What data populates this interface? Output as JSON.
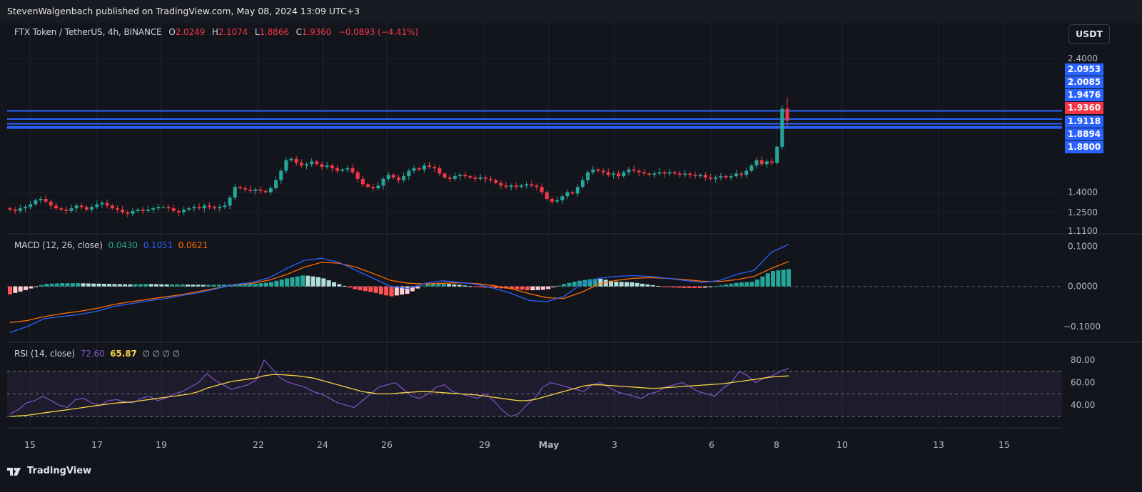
{
  "header": {
    "publisher": "StevenWalgenbach published on TradingView.com, May 08, 2024 13:09 UTC+3"
  },
  "symbol_legend": {
    "name": "FTX Token / TetherUS, 4h, BINANCE",
    "open_label": "O",
    "open": "2.0249",
    "high_label": "H",
    "high": "2.1074",
    "low_label": "L",
    "low": "1.8866",
    "close_label": "C",
    "close": "1.9360",
    "change": "−0.0893 (−4.41%)"
  },
  "currency_button": "USDT",
  "macd_legend": {
    "name": "MACD (12, 26, close)",
    "histogram": "0.0430",
    "macd": "0.1051",
    "signal": "0.0621"
  },
  "rsi_legend": {
    "name": "RSI (14, close)",
    "rsi": "72.60",
    "ma": "65.87",
    "extras": "∅  ∅  ∅  ∅"
  },
  "price_axis": {
    "ticks": [
      "2.4000",
      "1.4000",
      "1.2500",
      "1.1100"
    ],
    "tagged_levels": [
      {
        "label": "2.0953",
        "color": "#2962ff"
      },
      {
        "label": "2.0085",
        "color": "#2962ff"
      },
      {
        "label": "1.9476",
        "color": "#2962ff"
      },
      {
        "label": "1.9360",
        "color": "#f23645"
      },
      {
        "label": "1.9118",
        "color": "#2962ff"
      },
      {
        "label": "1.8894",
        "color": "#2962ff"
      },
      {
        "label": "1.8800",
        "color": "#2962ff"
      }
    ]
  },
  "macd_axis": {
    "ticks": [
      "0.1000",
      "0.0000",
      "−0.1000"
    ]
  },
  "rsi_axis": {
    "ticks": [
      "80.00",
      "60.00",
      "40.00"
    ]
  },
  "time_axis": {
    "labels": [
      "15",
      "17",
      "19",
      "22",
      "24",
      "26",
      "29",
      "May",
      "3",
      "6",
      "8",
      "10",
      "13",
      "15"
    ]
  },
  "colors": {
    "up": "#26a69a",
    "down": "#f23645",
    "level_line": "#2962ff",
    "macd_line": "#2962ff",
    "signal_line": "#ff6d00",
    "rsi_line": "#7e57c2",
    "rsi_ma": "#f5d142",
    "background": "#13151c"
  },
  "footer": {
    "brand": "TradingView"
  },
  "chart_data": [
    {
      "type": "candlestick",
      "title": "FTX Token / TetherUS, 4h, BINANCE",
      "ylim": [
        1.11,
        2.55
      ],
      "horizontal_levels": [
        2.0085,
        1.9476,
        1.9118,
        1.8894,
        1.88
      ],
      "x_labels": [
        "15",
        "17",
        "19",
        "22",
        "24",
        "26",
        "29",
        "May",
        "3",
        "6",
        "8",
        "10",
        "13",
        "15"
      ],
      "last_bar": {
        "open": 2.0249,
        "high": 2.1074,
        "low": 1.8866,
        "close": 1.936
      },
      "close_series": [
        1.27,
        1.26,
        1.28,
        1.29,
        1.31,
        1.34,
        1.35,
        1.33,
        1.3,
        1.28,
        1.27,
        1.26,
        1.28,
        1.3,
        1.29,
        1.27,
        1.29,
        1.31,
        1.32,
        1.3,
        1.28,
        1.27,
        1.25,
        1.24,
        1.26,
        1.27,
        1.26,
        1.27,
        1.28,
        1.29,
        1.29,
        1.28,
        1.26,
        1.25,
        1.27,
        1.28,
        1.29,
        1.28,
        1.3,
        1.29,
        1.28,
        1.29,
        1.3,
        1.36,
        1.44,
        1.43,
        1.42,
        1.41,
        1.42,
        1.41,
        1.4,
        1.43,
        1.49,
        1.56,
        1.64,
        1.65,
        1.62,
        1.6,
        1.61,
        1.63,
        1.61,
        1.59,
        1.6,
        1.58,
        1.56,
        1.57,
        1.58,
        1.55,
        1.5,
        1.46,
        1.44,
        1.43,
        1.45,
        1.5,
        1.53,
        1.51,
        1.49,
        1.52,
        1.56,
        1.58,
        1.57,
        1.6,
        1.59,
        1.58,
        1.54,
        1.51,
        1.5,
        1.52,
        1.53,
        1.52,
        1.51,
        1.5,
        1.51,
        1.5,
        1.49,
        1.47,
        1.45,
        1.44,
        1.45,
        1.44,
        1.45,
        1.46,
        1.45,
        1.44,
        1.4,
        1.35,
        1.33,
        1.34,
        1.37,
        1.4,
        1.39,
        1.44,
        1.49,
        1.55,
        1.57,
        1.56,
        1.55,
        1.53,
        1.54,
        1.52,
        1.55,
        1.57,
        1.56,
        1.55,
        1.54,
        1.53,
        1.54,
        1.55,
        1.54,
        1.55,
        1.54,
        1.53,
        1.54,
        1.53,
        1.52,
        1.53,
        1.51,
        1.5,
        1.51,
        1.52,
        1.51,
        1.52,
        1.54,
        1.53,
        1.56,
        1.6,
        1.64,
        1.61,
        1.63,
        1.62,
        1.74,
        2.0249,
        1.936
      ]
    },
    {
      "type": "line",
      "title": "MACD (12, 26, close)",
      "ylim": [
        -0.125,
        0.115
      ],
      "series": [
        {
          "name": "MACD",
          "values": [
            -0.115,
            -0.1,
            -0.08,
            -0.075,
            -0.07,
            -0.062,
            -0.05,
            -0.043,
            -0.036,
            -0.03,
            -0.022,
            -0.015,
            -0.005,
            0.005,
            0.01,
            0.022,
            0.045,
            0.065,
            0.07,
            0.06,
            0.04,
            0.02,
            0.0,
            -0.005,
            0.008,
            0.014,
            0.01,
            0.005,
            -0.005,
            -0.018,
            -0.035,
            -0.038,
            -0.025,
            0.005,
            0.02,
            0.025,
            0.027,
            0.025,
            0.02,
            0.015,
            0.01,
            0.015,
            0.03,
            0.04,
            0.085,
            0.1051
          ]
        },
        {
          "name": "Signal",
          "values": [
            -0.09,
            -0.085,
            -0.075,
            -0.068,
            -0.062,
            -0.055,
            -0.045,
            -0.038,
            -0.032,
            -0.026,
            -0.02,
            -0.012,
            -0.004,
            0.004,
            0.008,
            0.016,
            0.03,
            0.048,
            0.06,
            0.058,
            0.048,
            0.032,
            0.015,
            0.008,
            0.006,
            0.008,
            0.009,
            0.007,
            0.002,
            -0.006,
            -0.018,
            -0.028,
            -0.03,
            -0.015,
            0.005,
            0.015,
            0.02,
            0.022,
            0.02,
            0.017,
            0.013,
            0.012,
            0.017,
            0.025,
            0.045,
            0.0621
          ]
        },
        {
          "name": "Histogram",
          "values": [
            -0.02,
            -0.008,
            0.006,
            0.008,
            0.008,
            0.007,
            0.006,
            0.005,
            0.006,
            0.005,
            0.005,
            0.004,
            0.004,
            0.005,
            0.006,
            0.01,
            0.02,
            0.028,
            0.022,
            0.006,
            -0.008,
            -0.015,
            -0.025,
            -0.018,
            0.005,
            0.007,
            0.004,
            -0.002,
            -0.004,
            -0.006,
            -0.01,
            -0.008,
            0.006,
            0.015,
            0.02,
            0.012,
            0.01,
            0.004,
            -0.002,
            -0.004,
            -0.004,
            0.002,
            0.009,
            0.012,
            0.038,
            0.043
          ]
        }
      ]
    },
    {
      "type": "line",
      "title": "RSI (14, close)",
      "ylim": [
        25,
        90
      ],
      "bands": [
        70,
        30
      ],
      "series": [
        {
          "name": "RSI",
          "values": [
            32,
            36,
            42,
            44,
            48,
            44,
            40,
            38,
            45,
            46,
            42,
            40,
            44,
            45,
            43,
            42,
            46,
            48,
            44,
            46,
            50,
            52,
            56,
            60,
            68,
            62,
            58,
            54,
            56,
            58,
            62,
            80,
            72,
            64,
            60,
            58,
            56,
            52,
            50,
            46,
            42,
            40,
            38,
            44,
            50,
            56,
            58,
            60,
            54,
            48,
            46,
            50,
            56,
            58,
            52,
            50,
            48,
            46,
            50,
            44,
            36,
            30,
            32,
            40,
            46,
            56,
            60,
            58,
            56,
            54,
            52,
            58,
            60,
            56,
            52,
            50,
            48,
            46,
            50,
            52,
            56,
            58,
            60,
            56,
            52,
            50,
            48,
            55,
            60,
            70,
            66,
            60,
            64,
            66,
            70,
            72.6
          ]
        },
        {
          "name": "RSI MA",
          "values": [
            30,
            30.5,
            31,
            32,
            33,
            34,
            35,
            36,
            37,
            38,
            39,
            40,
            41,
            42,
            42.5,
            43,
            44,
            45,
            46,
            47,
            48,
            49,
            50,
            52,
            55,
            57,
            59,
            61,
            62,
            63,
            64,
            66,
            67,
            67,
            66.5,
            66,
            65,
            64,
            62,
            60,
            58,
            56,
            54,
            52,
            51,
            50,
            50,
            50.5,
            51,
            51.5,
            52,
            52,
            51.5,
            51,
            50.5,
            50,
            49.5,
            49,
            48,
            47,
            46,
            45,
            44,
            44,
            45,
            47,
            49,
            51,
            53,
            55,
            57,
            58,
            58,
            57.5,
            57,
            56.5,
            56,
            55.5,
            55,
            55,
            55.5,
            56,
            56.5,
            57,
            57.5,
            58,
            58.5,
            59,
            60,
            61,
            62,
            63,
            64,
            65,
            65.5,
            65.87
          ]
        }
      ]
    }
  ]
}
